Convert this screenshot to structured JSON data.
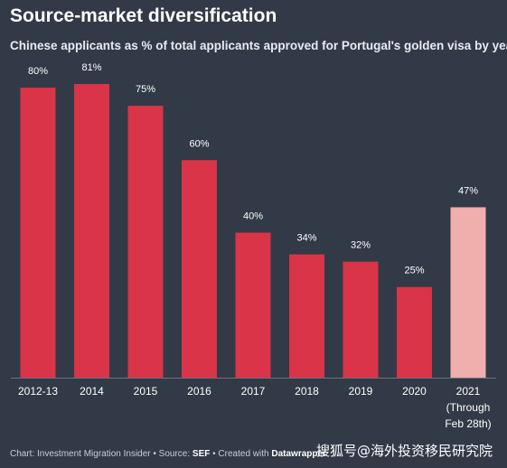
{
  "chart_data": {
    "type": "bar",
    "title": "Source-market diversification",
    "subtitle": "Chinese applicants as % of total applicants approved for Portugal's golden visa by year",
    "categories": [
      "2012-13",
      "2014",
      "2015",
      "2016",
      "2017",
      "2018",
      "2019",
      "2020",
      "2021 (Through Feb 28th)"
    ],
    "category_lines": [
      [
        "2012-13"
      ],
      [
        "2014"
      ],
      [
        "2015"
      ],
      [
        "2016"
      ],
      [
        "2017"
      ],
      [
        "2018"
      ],
      [
        "2019"
      ],
      [
        "2020"
      ],
      [
        "2021",
        "(Through",
        "Feb 28th)"
      ]
    ],
    "values": [
      80,
      81,
      75,
      60,
      40,
      34,
      32,
      25,
      47
    ],
    "value_labels": [
      "80%",
      "81%",
      "75%",
      "60%",
      "40%",
      "34%",
      "32%",
      "25%",
      "47%"
    ],
    "highlight_index": 8,
    "xlabel": "",
    "ylabel": "",
    "ylim": [
      0,
      81
    ],
    "grid": false,
    "colors": {
      "bar": "#d93447",
      "highlight": "#f0aeac",
      "background": "#323a47",
      "baseline": "#6b7380"
    }
  },
  "footer": {
    "prefix": "Chart: Investment Migration Insider • Source: ",
    "source": "SEF",
    "middle": " • Created with ",
    "tool": "Datawrapper"
  },
  "watermark": "搜狐号@海外投资移民研究院"
}
